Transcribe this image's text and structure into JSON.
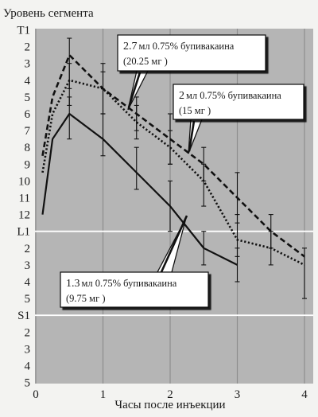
{
  "chart_data": {
    "type": "line",
    "ylabel": "Уровень сегмента",
    "xlabel": "Часы после инъекции",
    "x_ticks": [
      0,
      1,
      2,
      3,
      4
    ],
    "x_range": [
      0,
      4.2
    ],
    "y_tick_labels": [
      "T1",
      "2",
      "3",
      "4",
      "5",
      "6",
      "7",
      "8",
      "9",
      "10",
      "11",
      "12",
      "L1",
      "2",
      "3",
      "4",
      "5",
      "S1",
      "2",
      "3",
      "4",
      "5"
    ],
    "y_direction": "T1 at top, S5 at bottom",
    "reference_lines": [
      "L1",
      "S1"
    ],
    "grid": "vertical lines at each hour, horizontal lines at L1 and S1",
    "series": [
      {
        "style": "dashed",
        "x": [
          0.1,
          0.25,
          0.5,
          1.0,
          1.5,
          2.0,
          2.5,
          3.0,
          3.5,
          4.0
        ],
        "y": [
          "T8.5",
          "T5",
          "T2.5",
          "T4.5",
          "T6",
          "T7.5",
          "T9",
          "T11",
          "L1",
          "L2.5"
        ],
        "error_bars": {
          "x": [
            0.5,
            1.0,
            1.5,
            2.0,
            2.5,
            3.0,
            3.5
          ],
          "low": [
            "T1.5",
            "T3",
            "T5",
            "T6",
            "T8",
            "T9.5",
            "T12"
          ],
          "high": [
            "T4.5",
            "T6",
            "T7",
            "T9",
            "T10",
            "T12.5",
            "L2"
          ]
        }
      },
      {
        "style": "dotted",
        "x": [
          0.1,
          0.25,
          0.5,
          1.0,
          1.5,
          2.0,
          2.5,
          3.0,
          3.5,
          4.0
        ],
        "y": [
          "T9.5",
          "T6",
          "T4",
          "T4.5",
          "T6.5",
          "T8",
          "T10",
          "L1.5",
          "L2",
          "L3"
        ],
        "error_bars": {
          "x": [
            0.5,
            1.0,
            1.5,
            2.0,
            2.5,
            3.0,
            3.5,
            4.0
          ],
          "low": [
            "T3",
            "T3.5",
            "T5.5",
            "T7",
            "T9",
            "T12",
            "L1",
            "L2"
          ],
          "high": [
            "T5.5",
            "T6",
            "T7.5",
            "T9",
            "T11.5",
            "L2.5",
            "L3",
            "L5"
          ]
        }
      },
      {
        "style": "solid",
        "x": [
          0.1,
          0.25,
          0.5,
          1.0,
          1.5,
          2.0,
          2.5,
          3.0
        ],
        "y": [
          "T12",
          "T7.5",
          "T6",
          "T7.5",
          "T9.5",
          "T11.5",
          "L2",
          "L3"
        ],
        "error_bars": {
          "x": [
            0.5,
            1.0,
            1.5,
            2.0,
            2.5,
            3.0
          ],
          "low": [
            "T5",
            "T6",
            "T8",
            "T10",
            "L1",
            "L2"
          ],
          "high": [
            "T7.5",
            "T8.5",
            "T10.5",
            "T13",
            "L3",
            "L4"
          ]
        }
      }
    ],
    "callouts": [
      {
        "line1_a": "2.7",
        "line1_b": "мл  0.75% бупивакаина",
        "line2": "(20.25 мг )"
      },
      {
        "line1_a": "2",
        "line1_b": "мл  0.75% бупивакаина",
        "line2": "(15 мг )"
      },
      {
        "line1_a": "1.3",
        "line1_b": "мл  0.75%  бупивакаина",
        "line2": "(9.75 мг )"
      }
    ]
  }
}
